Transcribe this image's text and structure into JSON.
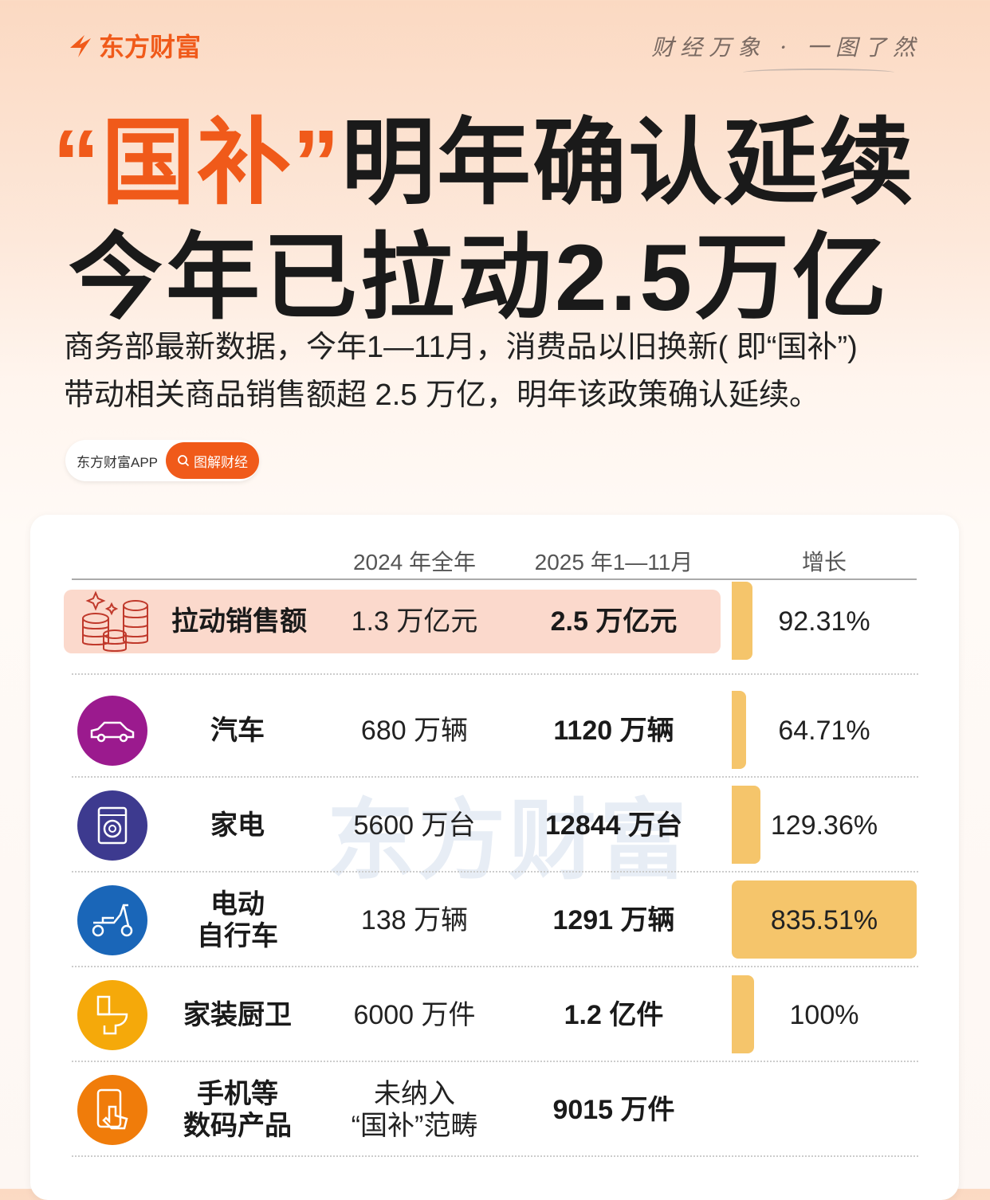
{
  "brand": {
    "logo_text": "东方财富",
    "slogan": "财经万象 · 一图了然",
    "accent": "#f05a1a"
  },
  "headline": {
    "quote_open": "“",
    "highlight": "国补",
    "quote_close": "”",
    "line1_rest": "明年确认延续",
    "line2": "今年已拉动2.5万亿"
  },
  "description": {
    "line1": "商务部最新数据，今年1—11月，消费品以旧换新( 即“国补”)",
    "line2": "带动相关商品销售额超 2.5 万亿，明年该政策确认延续。"
  },
  "source_pill": {
    "app": "东方财富APP",
    "tag": "图解财经",
    "tag_icon": "search-icon"
  },
  "watermark": "东方财富",
  "chart_data": {
    "type": "table",
    "columns": [
      "",
      "2024 年全年",
      "2025 年1—11月",
      "增长"
    ],
    "rows": [
      {
        "category": "拉动销售额",
        "icon": "coins-icon",
        "icon_color": "#fbd9cc",
        "v2024": "1.3 万亿元",
        "v2025": "2.5 万亿元",
        "growth_label": "92.31%",
        "growth": 92.31,
        "highlight": true
      },
      {
        "category": "汽车",
        "icon": "car-icon",
        "icon_color": "#9b1a8e",
        "v2024": "680 万辆",
        "v2025": "1120 万辆",
        "growth_label": "64.71%",
        "growth": 64.71
      },
      {
        "category": "家电",
        "icon": "washing-machine-icon",
        "icon_color": "#3d3a8f",
        "v2024": "5600 万台",
        "v2025": "12844 万台",
        "growth_label": "129.36%",
        "growth": 129.36
      },
      {
        "category": "电动\n自行车",
        "icon": "scooter-icon",
        "icon_color": "#1a66b8",
        "v2024": "138 万辆",
        "v2025": "1291 万辆",
        "growth_label": "835.51%",
        "growth": 835.51
      },
      {
        "category": "家装厨卫",
        "icon": "toilet-icon",
        "icon_color": "#f5a90a",
        "v2024": "6000 万件",
        "v2025": "1.2 亿件",
        "growth_label": "100%",
        "growth": 100
      },
      {
        "category": "手机等\n数码产品",
        "icon": "phone-touch-icon",
        "icon_color": "#f07c0a",
        "v2024": "未纳入\n“国补”范畴",
        "v2025": "9015 万件",
        "growth_label": "",
        "growth": null
      }
    ],
    "bar_color": "#f5c56b"
  }
}
